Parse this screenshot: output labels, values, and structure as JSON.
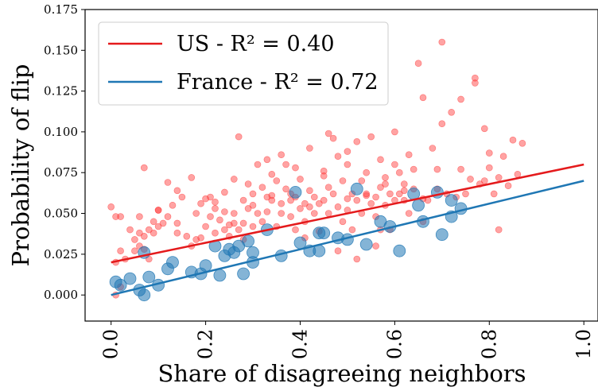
{
  "chart_data": {
    "type": "scatter",
    "xlabel": "Share of disagreeing neighbors",
    "ylabel": "Probability of flip",
    "xlim": [
      -0.055,
      1.03
    ],
    "ylim": [
      -0.016,
      0.175
    ],
    "xticks": [
      "0.0",
      "0.2",
      "0.4",
      "0.6",
      "0.8",
      "1.0"
    ],
    "yticks": [
      "0.000",
      "0.025",
      "0.050",
      "0.075",
      "0.100",
      "0.125",
      "0.150",
      "0.175"
    ],
    "grid": false,
    "legend_position": "top-left",
    "legend": [
      {
        "label": "US - R² = 0.40",
        "color": "#e41a1c"
      },
      {
        "label": "France - R² = 0.72",
        "color": "#1f77b4"
      }
    ],
    "fit_lines": [
      {
        "name": "US",
        "color": "#e41a1c",
        "x": [
          0.0,
          1.0
        ],
        "y": [
          0.02,
          0.08
        ]
      },
      {
        "name": "France",
        "color": "#1f77b4",
        "x": [
          0.0,
          1.0
        ],
        "y": [
          0.0,
          0.07
        ]
      }
    ],
    "series": [
      {
        "name": "US",
        "color": "#ff3333",
        "points": [
          [
            0.0,
            0.054
          ],
          [
            0.01,
            0.048
          ],
          [
            0.02,
            0.048
          ],
          [
            0.02,
            0.027
          ],
          [
            0.03,
            0.022
          ],
          [
            0.01,
            0.02
          ],
          [
            0.02,
            0.005
          ],
          [
            0.01,
            0.0
          ],
          [
            0.04,
            0.04
          ],
          [
            0.05,
            0.027
          ],
          [
            0.05,
            0.034
          ],
          [
            0.06,
            0.038
          ],
          [
            0.06,
            0.03
          ],
          [
            0.07,
            0.036
          ],
          [
            0.07,
            0.028
          ],
          [
            0.08,
            0.022
          ],
          [
            0.07,
            0.078
          ],
          [
            0.08,
            0.04
          ],
          [
            0.09,
            0.038
          ],
          [
            0.09,
            0.045
          ],
          [
            0.1,
            0.042
          ],
          [
            0.1,
            0.052
          ],
          [
            0.11,
            0.044
          ],
          [
            0.12,
            0.048
          ],
          [
            0.12,
            0.069
          ],
          [
            0.13,
            0.055
          ],
          [
            0.14,
            0.064
          ],
          [
            0.15,
            0.06
          ],
          [
            0.16,
            0.036
          ],
          [
            0.17,
            0.03
          ],
          [
            0.17,
            0.072
          ],
          [
            0.18,
            0.034
          ],
          [
            0.19,
            0.035
          ],
          [
            0.19,
            0.056
          ],
          [
            0.2,
            0.042
          ],
          [
            0.2,
            0.059
          ],
          [
            0.21,
            0.06
          ],
          [
            0.21,
            0.048
          ],
          [
            0.22,
            0.038
          ],
          [
            0.22,
            0.053
          ],
          [
            0.23,
            0.046
          ],
          [
            0.24,
            0.051
          ],
          [
            0.24,
            0.063
          ],
          [
            0.25,
            0.036
          ],
          [
            0.25,
            0.043
          ],
          [
            0.26,
            0.071
          ],
          [
            0.26,
            0.05
          ],
          [
            0.27,
            0.04
          ],
          [
            0.27,
            0.097
          ],
          [
            0.28,
            0.044
          ],
          [
            0.28,
            0.034
          ],
          [
            0.29,
            0.053
          ],
          [
            0.29,
            0.068
          ],
          [
            0.3,
            0.062
          ],
          [
            0.3,
            0.042
          ],
          [
            0.31,
            0.08
          ],
          [
            0.31,
            0.05
          ],
          [
            0.32,
            0.066
          ],
          [
            0.32,
            0.045
          ],
          [
            0.33,
            0.051
          ],
          [
            0.33,
            0.083
          ],
          [
            0.34,
            0.061
          ],
          [
            0.34,
            0.074
          ],
          [
            0.35,
            0.042
          ],
          [
            0.35,
            0.07
          ],
          [
            0.36,
            0.056
          ],
          [
            0.36,
            0.05
          ],
          [
            0.37,
            0.065
          ],
          [
            0.37,
            0.08
          ],
          [
            0.38,
            0.058
          ],
          [
            0.38,
            0.048
          ],
          [
            0.39,
            0.06
          ],
          [
            0.39,
            0.078
          ],
          [
            0.4,
            0.053
          ],
          [
            0.4,
            0.071
          ],
          [
            0.41,
            0.056
          ],
          [
            0.41,
            0.045
          ],
          [
            0.42,
            0.064
          ],
          [
            0.42,
            0.09
          ],
          [
            0.43,
            0.05
          ],
          [
            0.43,
            0.06
          ],
          [
            0.44,
            0.056
          ],
          [
            0.44,
            0.039
          ],
          [
            0.45,
            0.058
          ],
          [
            0.45,
            0.073
          ],
          [
            0.46,
            0.05
          ],
          [
            0.46,
            0.099
          ],
          [
            0.47,
            0.096
          ],
          [
            0.47,
            0.062
          ],
          [
            0.48,
            0.054
          ],
          [
            0.48,
            0.085
          ],
          [
            0.49,
            0.045
          ],
          [
            0.49,
            0.07
          ],
          [
            0.5,
            0.052
          ],
          [
            0.5,
            0.08
          ],
          [
            0.51,
            0.062
          ],
          [
            0.51,
            0.04
          ],
          [
            0.52,
            0.058
          ],
          [
            0.52,
            0.094
          ],
          [
            0.53,
            0.05
          ],
          [
            0.53,
            0.07
          ],
          [
            0.54,
            0.062
          ],
          [
            0.54,
            0.075
          ],
          [
            0.55,
            0.056
          ],
          [
            0.55,
            0.097
          ],
          [
            0.56,
            0.06
          ],
          [
            0.56,
            0.048
          ],
          [
            0.57,
            0.066
          ],
          [
            0.57,
            0.083
          ],
          [
            0.58,
            0.055
          ],
          [
            0.58,
            0.072
          ],
          [
            0.59,
            0.062
          ],
          [
            0.59,
            0.04
          ],
          [
            0.6,
            0.058
          ],
          [
            0.6,
            0.1
          ],
          [
            0.61,
            0.062
          ],
          [
            0.61,
            0.075
          ],
          [
            0.62,
            0.058
          ],
          [
            0.62,
            0.068
          ],
          [
            0.63,
            0.05
          ],
          [
            0.64,
            0.065
          ],
          [
            0.64,
            0.077
          ],
          [
            0.65,
            0.142
          ],
          [
            0.66,
            0.059
          ],
          [
            0.66,
            0.121
          ],
          [
            0.67,
            0.058
          ],
          [
            0.68,
            0.09
          ],
          [
            0.69,
            0.065
          ],
          [
            0.69,
            0.077
          ],
          [
            0.7,
            0.155
          ],
          [
            0.7,
            0.105
          ],
          [
            0.71,
            0.062
          ],
          [
            0.72,
            0.112
          ],
          [
            0.73,
            0.06
          ],
          [
            0.74,
            0.077
          ],
          [
            0.74,
            0.12
          ],
          [
            0.75,
            0.062
          ],
          [
            0.76,
            0.071
          ],
          [
            0.77,
            0.133
          ],
          [
            0.77,
            0.13
          ],
          [
            0.78,
            0.068
          ],
          [
            0.79,
            0.07
          ],
          [
            0.79,
            0.102
          ],
          [
            0.8,
            0.087
          ],
          [
            0.8,
            0.078
          ],
          [
            0.81,
            0.062
          ],
          [
            0.82,
            0.04
          ],
          [
            0.82,
            0.072
          ],
          [
            0.83,
            0.085
          ],
          [
            0.84,
            0.067
          ],
          [
            0.85,
            0.095
          ],
          [
            0.86,
            0.074
          ],
          [
            0.87,
            0.093
          ],
          [
            0.06,
            0.048
          ],
          [
            0.1,
            0.052
          ],
          [
            0.14,
            0.038
          ],
          [
            0.18,
            0.05
          ],
          [
            0.22,
            0.057
          ],
          [
            0.26,
            0.044
          ],
          [
            0.3,
            0.055
          ],
          [
            0.34,
            0.058
          ],
          [
            0.38,
            0.062
          ],
          [
            0.42,
            0.054
          ],
          [
            0.46,
            0.066
          ],
          [
            0.5,
            0.059
          ],
          [
            0.54,
            0.061
          ],
          [
            0.58,
            0.068
          ],
          [
            0.62,
            0.064
          ],
          [
            0.48,
            0.027
          ],
          [
            0.52,
            0.022
          ],
          [
            0.56,
            0.03
          ],
          [
            0.66,
            0.045
          ],
          [
            0.6,
            0.08
          ],
          [
            0.63,
            0.086
          ],
          [
            0.45,
            0.076
          ],
          [
            0.5,
            0.088
          ],
          [
            0.36,
            0.086
          ],
          [
            0.28,
            0.058
          ],
          [
            0.39,
            0.04
          ],
          [
            0.33,
            0.06
          ],
          [
            0.24,
            0.04
          ],
          [
            0.14,
            0.044
          ],
          [
            0.41,
            0.035
          ],
          [
            0.57,
            0.04
          ]
        ]
      },
      {
        "name": "France",
        "color": "#1f77b4",
        "points": [
          [
            0.01,
            0.008
          ],
          [
            0.02,
            0.006
          ],
          [
            0.04,
            0.01
          ],
          [
            0.06,
            0.003
          ],
          [
            0.07,
            0.0
          ],
          [
            0.07,
            0.026
          ],
          [
            0.08,
            0.011
          ],
          [
            0.1,
            0.006
          ],
          [
            0.12,
            0.016
          ],
          [
            0.13,
            0.02
          ],
          [
            0.17,
            0.014
          ],
          [
            0.19,
            0.013
          ],
          [
            0.2,
            0.018
          ],
          [
            0.22,
            0.03
          ],
          [
            0.23,
            0.012
          ],
          [
            0.24,
            0.024
          ],
          [
            0.25,
            0.028
          ],
          [
            0.26,
            0.026
          ],
          [
            0.27,
            0.03
          ],
          [
            0.28,
            0.013
          ],
          [
            0.29,
            0.033
          ],
          [
            0.3,
            0.02
          ],
          [
            0.3,
            0.026
          ],
          [
            0.33,
            0.04
          ],
          [
            0.36,
            0.024
          ],
          [
            0.39,
            0.063
          ],
          [
            0.4,
            0.032
          ],
          [
            0.42,
            0.027
          ],
          [
            0.44,
            0.027
          ],
          [
            0.44,
            0.038
          ],
          [
            0.45,
            0.038
          ],
          [
            0.48,
            0.035
          ],
          [
            0.5,
            0.034
          ],
          [
            0.52,
            0.065
          ],
          [
            0.54,
            0.031
          ],
          [
            0.57,
            0.045
          ],
          [
            0.59,
            0.042
          ],
          [
            0.61,
            0.027
          ],
          [
            0.64,
            0.062
          ],
          [
            0.66,
            0.045
          ],
          [
            0.69,
            0.063
          ],
          [
            0.7,
            0.037
          ],
          [
            0.72,
            0.058
          ],
          [
            0.72,
            0.048
          ],
          [
            0.74,
            0.053
          ],
          [
            0.65,
            0.055
          ]
        ]
      }
    ]
  }
}
